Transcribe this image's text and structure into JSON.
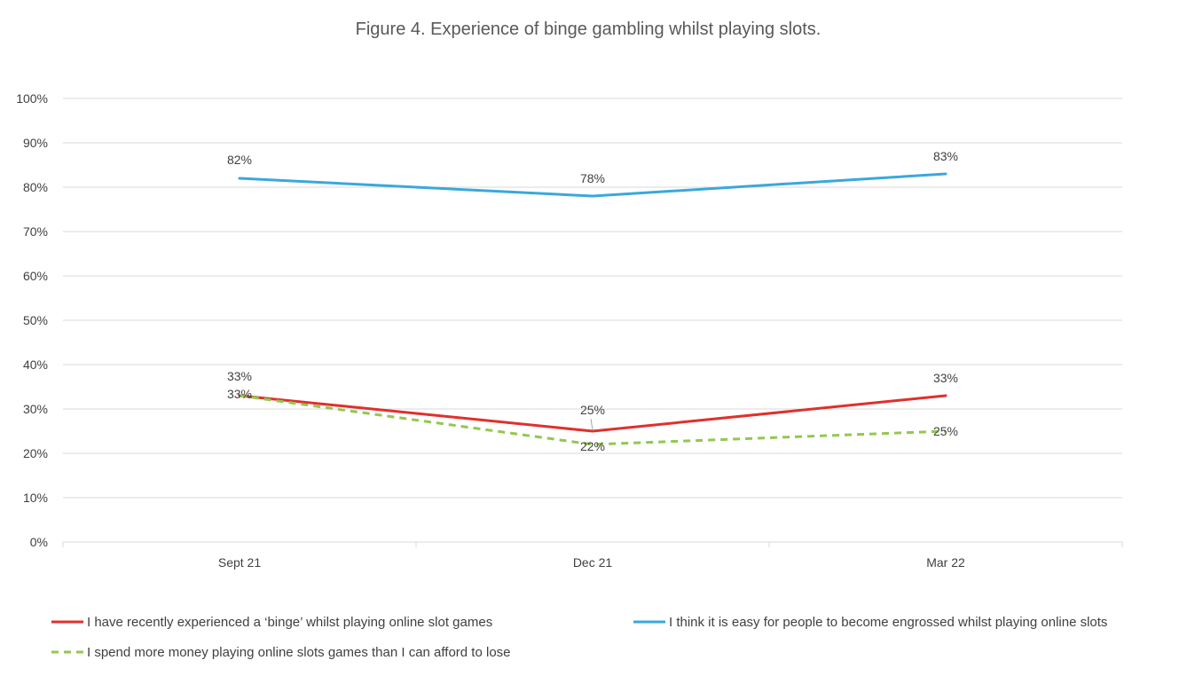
{
  "chart_data": {
    "type": "line",
    "title": "Figure 4. Experience of binge gambling whilst playing slots.",
    "categories": [
      "Sept 21",
      "Dec 21",
      "Mar 22"
    ],
    "ylim": [
      0,
      100
    ],
    "ytick_labels": [
      "0%",
      "10%",
      "20%",
      "30%",
      "40%",
      "50%",
      "60%",
      "70%",
      "80%",
      "90%",
      "100%"
    ],
    "grid": true,
    "legend_position": "bottom",
    "series": [
      {
        "name": "I have recently experienced a ‘binge’ whilst playing online slot games",
        "values": [
          33,
          25,
          33
        ],
        "labels": [
          "33%",
          "25%",
          "33%"
        ],
        "color": "#e0302c",
        "style": "solid"
      },
      {
        "name": "I think it is easy for people to become engrossed whilst playing online slots",
        "values": [
          82,
          78,
          83
        ],
        "labels": [
          "82%",
          "78%",
          "83%"
        ],
        "color": "#3aa8dc",
        "style": "solid"
      },
      {
        "name": "I spend more money playing online slots games than I can afford to lose",
        "values": [
          33,
          22,
          25
        ],
        "labels": [
          "33%",
          "22%",
          "25%"
        ],
        "color": "#92c84f",
        "style": "dashed"
      }
    ]
  }
}
